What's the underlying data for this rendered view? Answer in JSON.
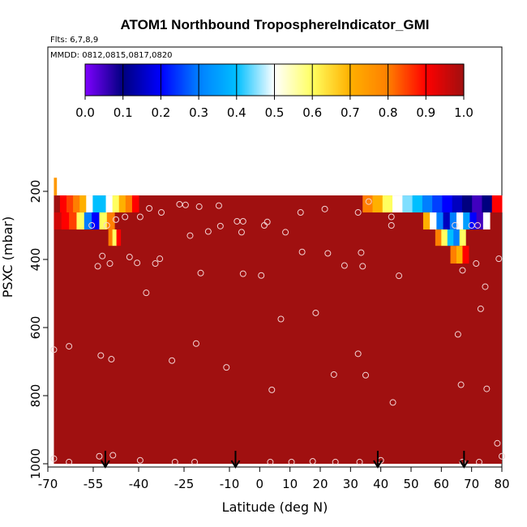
{
  "chart_data": {
    "type": "heatmap",
    "title": "ATOM1 Northbound TroposphereIndicator_GMI",
    "flights_note": "Flts: 6,7,8,9",
    "dates_note": "MMDD: 0812,0815,0817,0820",
    "xlabel": "Latitude (deg N)",
    "ylabel": "PSXC (mbar)",
    "xlim": [
      -70,
      80
    ],
    "ylim": [
      1000,
      0
    ],
    "x_ticks": [
      -70,
      -55,
      -40,
      -25,
      -10,
      0,
      10,
      20,
      30,
      40,
      50,
      60,
      70,
      80
    ],
    "y_ticks": [
      200,
      400,
      600,
      800,
      1000
    ],
    "colorbar": {
      "min": 0.0,
      "max": 1.0,
      "tick_labels": [
        "0.0",
        "0.1",
        "0.2",
        "0.3",
        "0.4",
        "0.5",
        "0.6",
        "0.7",
        "0.8",
        "0.9",
        "1.0"
      ],
      "colors": [
        "#7f00ff",
        "#00007f",
        "#0000ff",
        "#007fff",
        "#00bfff",
        "#ffffff",
        "#ffff60",
        "#ffb000",
        "#ff7f00",
        "#ff0000",
        "#a01010"
      ]
    },
    "background_value": 1.0,
    "data_top_pressure": 212,
    "data_lat_range": [
      -68,
      80
    ],
    "transition_bands": [
      {
        "lat_start": -66,
        "lat_end": -40,
        "p_top": 212,
        "p_bottom": 262,
        "values": [
          0.9,
          0.85,
          0.8,
          0.7,
          0.5,
          0.4,
          0.4,
          0.5,
          0.6,
          0.7,
          0.8,
          0.9
        ]
      },
      {
        "lat_start": -68,
        "lat_end": -48,
        "p_top": 262,
        "p_bottom": 312,
        "values": [
          0.95,
          0.9,
          0.85,
          0.6,
          0.3,
          0.2,
          0.6,
          0.8
        ]
      },
      {
        "lat_start": -50,
        "lat_end": -46,
        "p_top": 312,
        "p_bottom": 360,
        "values": [
          0.8,
          0.6,
          0.9
        ]
      },
      {
        "lat_start": 34,
        "lat_end": 80,
        "p_top": 212,
        "p_bottom": 262,
        "values": [
          0.8,
          0.7,
          0.6,
          0.5,
          0.45,
          0.4,
          0.3,
          0.25,
          0.2,
          0.15,
          0.1,
          0.05,
          0.1,
          0.9
        ]
      },
      {
        "lat_start": 54,
        "lat_end": 76,
        "p_top": 262,
        "p_bottom": 312,
        "values": [
          0.7,
          0.5,
          0.3,
          0.15,
          0.3,
          0.5,
          0.35,
          0.2,
          0.05,
          0.5
        ]
      },
      {
        "lat_start": 58,
        "lat_end": 68,
        "p_top": 312,
        "p_bottom": 360,
        "values": [
          0.8,
          0.6,
          0.4,
          0.3,
          0.6
        ]
      },
      {
        "lat_start": 63,
        "lat_end": 69,
        "p_top": 360,
        "p_bottom": 412,
        "values": [
          0.8,
          0.7,
          0.9
        ]
      }
    ],
    "extra_cells": [
      {
        "lat_start": -68,
        "lat_end": -67,
        "p_top": 160,
        "p_bottom": 212,
        "value": 0.75
      }
    ],
    "observations": {
      "lat": [
        -55.5,
        -50.5,
        -47.5,
        -44.5,
        -39.5,
        -36.5,
        -32.5,
        -26.5,
        -24.5,
        -20,
        -13.5,
        -7.5,
        -5.5,
        2.5,
        13.5,
        21.5,
        32.5,
        36,
        43.5,
        64.5,
        70,
        72,
        -52,
        -43,
        -33,
        -23,
        -17,
        -13,
        -6,
        1.5,
        8.5,
        14,
        22.5,
        33.5,
        43.5,
        -53.5,
        -49.5,
        -40.5,
        -34.5,
        -19.5,
        -5.5,
        0.5,
        28,
        34,
        46,
        67,
        71.5,
        79,
        -68,
        -37.5,
        7,
        18.5,
        -63,
        -52.5,
        -49,
        -29,
        -21,
        -11,
        4,
        24.5,
        32.5,
        35,
        44,
        65.5,
        66.5,
        73,
        74.5,
        75,
        -68,
        -63,
        -53,
        -48.5,
        -39.5,
        -28,
        -21.5,
        3.5,
        10.5,
        17.5,
        25,
        33,
        40,
        67,
        72.5,
        78.5,
        80
      ],
      "p": [
        300,
        300,
        283,
        275,
        275,
        250,
        262,
        238,
        240,
        245,
        242,
        288,
        288,
        290,
        262,
        252,
        262,
        230,
        275,
        300,
        300,
        300,
        390,
        393,
        398,
        330,
        318,
        302,
        320,
        300,
        320,
        378,
        382,
        380,
        300,
        420,
        412,
        410,
        412,
        440,
        442,
        447,
        418,
        420,
        448,
        432,
        412,
        398,
        665,
        498,
        575,
        557,
        655,
        682,
        693,
        697,
        647,
        717,
        783,
        738,
        677,
        740,
        820,
        620,
        768,
        545,
        480,
        780,
        985,
        995,
        978,
        975,
        990,
        995,
        995,
        995,
        995,
        993,
        995,
        995,
        990,
        995,
        995,
        940,
        978
      ]
    },
    "markers": {
      "lat": [
        -51,
        -8,
        39,
        67.5
      ]
    }
  }
}
